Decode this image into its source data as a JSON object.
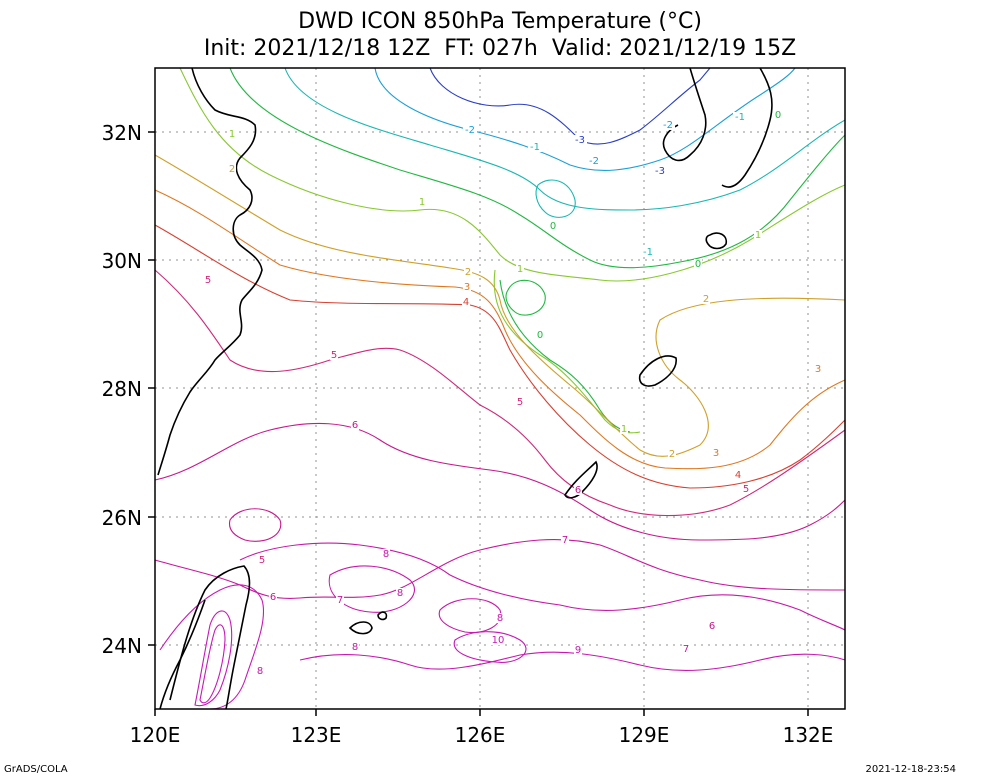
{
  "title": {
    "line1": "DWD ICON 850hPa Temperature (°C)",
    "line2": "Init: 2021/12/18 12Z  FT: 027h  Valid: 2021/12/19 15Z"
  },
  "axes": {
    "x_ticks": [
      "120E",
      "123E",
      "126E",
      "129E",
      "132E"
    ],
    "y_ticks": [
      "32N",
      "30N",
      "28N",
      "26N",
      "24N"
    ]
  },
  "contour_labels": [
    {
      "text": "-3",
      "color": "#2a3ec8"
    },
    {
      "text": "-3",
      "color": "#2a3ec8"
    },
    {
      "text": "-2",
      "color": "#1aa0d8"
    },
    {
      "text": "-2",
      "color": "#1aa0d8"
    },
    {
      "text": "-2",
      "color": "#1aa0d8"
    },
    {
      "text": "-1",
      "color": "#18b8b0"
    },
    {
      "text": "-1",
      "color": "#18b8b0"
    },
    {
      "text": "-1",
      "color": "#18b8b0"
    },
    {
      "text": "0",
      "color": "#20b840"
    },
    {
      "text": "0",
      "color": "#20b840"
    },
    {
      "text": "0",
      "color": "#20b840"
    },
    {
      "text": "0",
      "color": "#20b840"
    },
    {
      "text": "1",
      "color": "#88c830"
    },
    {
      "text": "1",
      "color": "#88c830"
    },
    {
      "text": "1",
      "color": "#88c830"
    },
    {
      "text": "1",
      "color": "#88c830"
    },
    {
      "text": "1",
      "color": "#88c830"
    },
    {
      "text": "2",
      "color": "#d0a028"
    },
    {
      "text": "2",
      "color": "#d0a028"
    },
    {
      "text": "2",
      "color": "#d0a028"
    },
    {
      "text": "2",
      "color": "#d0a028"
    },
    {
      "text": "3",
      "color": "#e07820"
    },
    {
      "text": "3",
      "color": "#e07820"
    },
    {
      "text": "3",
      "color": "#e07820"
    },
    {
      "text": "4",
      "color": "#d84030"
    },
    {
      "text": "4",
      "color": "#d84030"
    },
    {
      "text": "5",
      "color": "#d02878"
    },
    {
      "text": "5",
      "color": "#d02878"
    },
    {
      "text": "5",
      "color": "#d02878"
    },
    {
      "text": "5",
      "color": "#d02878"
    },
    {
      "text": "5",
      "color": "#d02878"
    },
    {
      "text": "6",
      "color": "#c8188c"
    },
    {
      "text": "6",
      "color": "#c8188c"
    },
    {
      "text": "6",
      "color": "#c8188c"
    },
    {
      "text": "6",
      "color": "#c8188c"
    },
    {
      "text": "7",
      "color": "#c8189c"
    },
    {
      "text": "7",
      "color": "#c8189c"
    },
    {
      "text": "7",
      "color": "#c8189c"
    },
    {
      "text": "8",
      "color": "#c818a8"
    },
    {
      "text": "8",
      "color": "#c818a8"
    },
    {
      "text": "8",
      "color": "#c818a8"
    },
    {
      "text": "8",
      "color": "#c818a8"
    },
    {
      "text": "8",
      "color": "#c818a8"
    },
    {
      "text": "9",
      "color": "#c818b0"
    },
    {
      "text": "10",
      "color": "#c818b8"
    }
  ],
  "colors": {
    "frame": "#000000",
    "grid": "#909090",
    "coast": "#000000"
  },
  "footer": {
    "left": "GrADS/COLA",
    "right": "2021-12-18-23:54"
  }
}
